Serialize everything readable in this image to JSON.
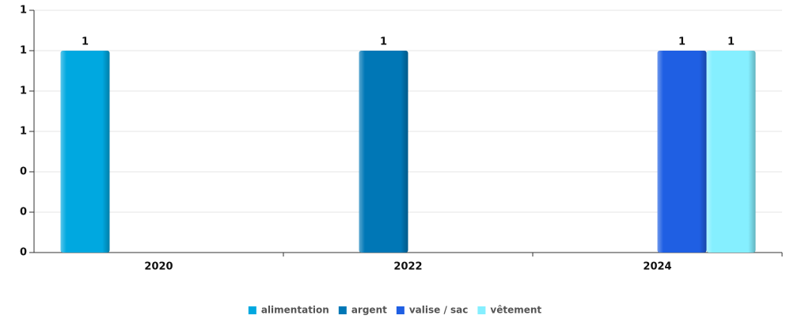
{
  "chart_data": {
    "type": "bar",
    "categories": [
      "2020",
      "2022",
      "2024"
    ],
    "series": [
      {
        "name": "alimentation",
        "color": "#00a8e0",
        "values": [
          1,
          null,
          null
        ]
      },
      {
        "name": "argent",
        "color": "#0077b6",
        "values": [
          null,
          1,
          null
        ]
      },
      {
        "name": "valise / sac",
        "color": "#1f5fe3",
        "values": [
          null,
          null,
          1
        ]
      },
      {
        "name": "vêtement",
        "color": "#85efff",
        "values": [
          null,
          null,
          1
        ]
      }
    ],
    "ylim": [
      0,
      1.2
    ],
    "yticks": [
      0,
      {
        "value": 0.2,
        "label": "0"
      },
      {
        "value": 0.4,
        "label": "0"
      },
      {
        "value": 0.6,
        "label": "1"
      },
      {
        "value": 0.8,
        "label": "1"
      },
      1,
      {
        "value": 1.2,
        "label": "1"
      }
    ],
    "grid": true,
    "legend": "bottom"
  }
}
